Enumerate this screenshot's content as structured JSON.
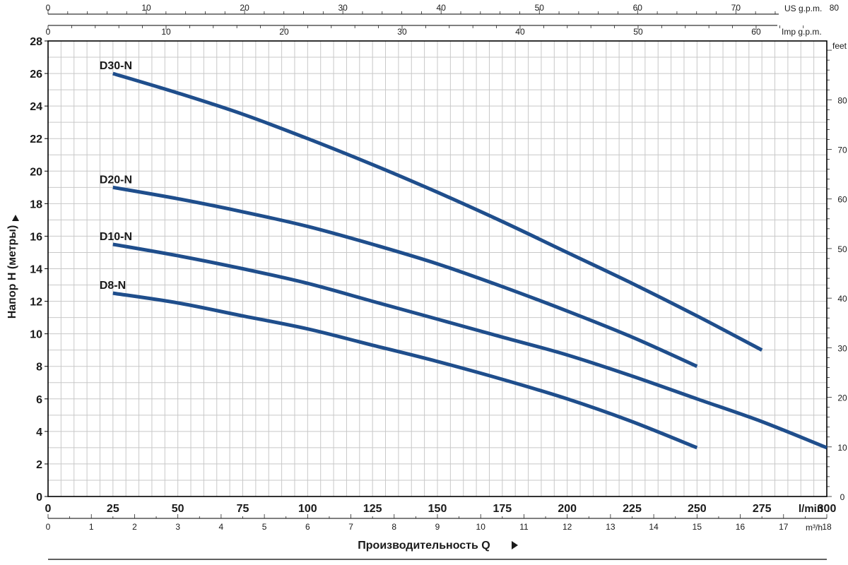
{
  "chart_data": {
    "type": "line",
    "title": "",
    "xlabel": "Производительность Q",
    "ylabel": "Напор H (метры)",
    "xlim": [
      0,
      300
    ],
    "ylim": [
      0,
      28
    ],
    "grid": true,
    "x_unit": "l/min",
    "x_ticks": [
      0,
      25,
      50,
      75,
      100,
      125,
      150,
      175,
      200,
      225,
      250,
      275,
      300
    ],
    "y_ticks": [
      0,
      2,
      4,
      6,
      8,
      10,
      12,
      14,
      16,
      18,
      20,
      22,
      24,
      26,
      28
    ],
    "secondary_axes": {
      "us_gpm": {
        "label": "US g.p.m.",
        "ticks": [
          0,
          10,
          20,
          30,
          40,
          50,
          60,
          70,
          80
        ]
      },
      "imp_gpm": {
        "label": "Imp g.p.m.",
        "ticks": [
          0,
          10,
          20,
          30,
          40,
          50,
          60
        ]
      },
      "m3h": {
        "label": "m³/h",
        "ticks": [
          0,
          1,
          2,
          3,
          4,
          5,
          6,
          7,
          8,
          9,
          10,
          11,
          12,
          13,
          14,
          15,
          16,
          17,
          18
        ]
      },
      "feet": {
        "label": "feet",
        "ticks": [
          0,
          10,
          20,
          30,
          40,
          50,
          60,
          70,
          80
        ]
      }
    },
    "series": [
      {
        "name": "D30-N",
        "color": "#1f4e8c",
        "x": [
          25,
          50,
          75,
          100,
          125,
          150,
          175,
          200,
          225,
          250,
          275
        ],
        "y": [
          26.0,
          24.8,
          23.5,
          22.0,
          20.4,
          18.7,
          16.9,
          15.0,
          13.1,
          11.1,
          9.0
        ]
      },
      {
        "name": "D20-N",
        "color": "#1f4e8c",
        "x": [
          25,
          50,
          75,
          100,
          125,
          150,
          175,
          200,
          225,
          250
        ],
        "y": [
          19.0,
          18.3,
          17.5,
          16.6,
          15.5,
          14.3,
          12.9,
          11.4,
          9.8,
          8.0
        ]
      },
      {
        "name": "D10-N",
        "color": "#1f4e8c",
        "x": [
          25,
          50,
          75,
          100,
          125,
          150,
          175,
          200,
          225,
          250,
          275,
          300
        ],
        "y": [
          15.5,
          14.8,
          14.0,
          13.1,
          12.0,
          10.9,
          9.8,
          8.7,
          7.4,
          6.0,
          4.6,
          3.0
        ]
      },
      {
        "name": "D8-N",
        "color": "#1f4e8c",
        "x": [
          25,
          50,
          75,
          100,
          125,
          150,
          175,
          200,
          225,
          250
        ],
        "y": [
          12.5,
          11.9,
          11.1,
          10.3,
          9.3,
          8.3,
          7.2,
          6.0,
          4.6,
          3.0
        ]
      }
    ]
  }
}
